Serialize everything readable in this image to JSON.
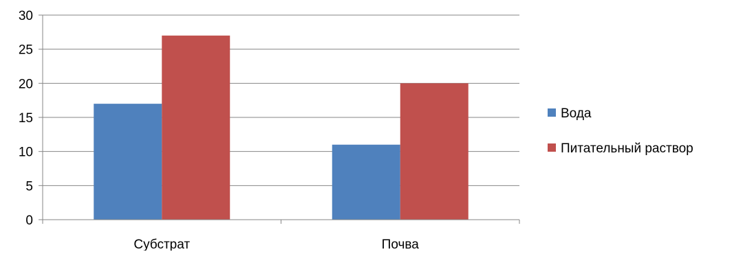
{
  "chart_data": {
    "type": "bar",
    "categories": [
      "Субстрат",
      "Почва"
    ],
    "series": [
      {
        "name": "Вода",
        "values": [
          17,
          11
        ],
        "color": "#4f81bd"
      },
      {
        "name": "Питательный раствор",
        "values": [
          27,
          20
        ],
        "color": "#c0504d"
      }
    ],
    "ylim": [
      0,
      30
    ],
    "y_ticks": [
      "0",
      "5",
      "10",
      "15",
      "20",
      "25",
      "30"
    ],
    "grid": true,
    "legend_position": "right",
    "title": "",
    "xlabel": "",
    "ylabel": ""
  }
}
